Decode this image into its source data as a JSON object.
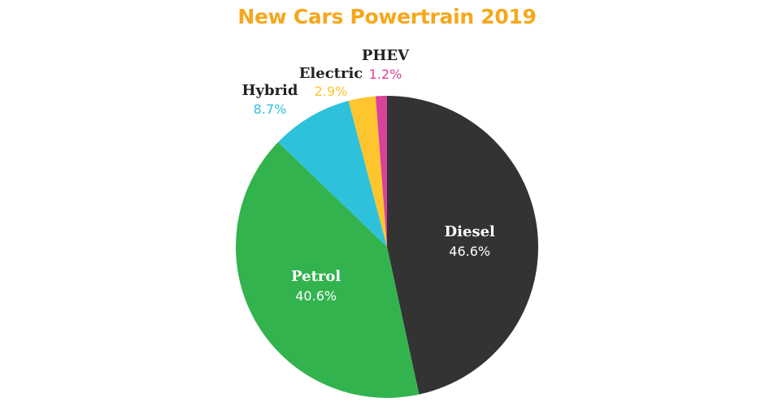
{
  "chart_data": {
    "type": "pie",
    "title": "New Cars Powertrain 2019",
    "title_color": "#f5a71c",
    "slices": [
      {
        "name": "Diesel",
        "value": 46.6,
        "label": "46.6%",
        "color": "#333333",
        "label_placement": "inside",
        "label_color": "#ffffff"
      },
      {
        "name": "Petrol",
        "value": 40.6,
        "label": "40.6%",
        "color": "#33b34e",
        "label_placement": "inside",
        "label_color": "#ffffff"
      },
      {
        "name": "Hybrid",
        "value": 8.7,
        "label": "8.7%",
        "color": "#2ec1dc",
        "label_placement": "outside",
        "label_color": "#2ec1dc"
      },
      {
        "name": "Electric",
        "value": 2.9,
        "label": "2.9%",
        "color": "#fec52e",
        "label_placement": "outside",
        "label_color": "#fec52e"
      },
      {
        "name": "PHEV",
        "value": 1.2,
        "label": "1.2%",
        "color": "#d8429b",
        "label_placement": "outside",
        "label_color": "#d8429b"
      }
    ],
    "outside_name_color": "#222222",
    "start": "12 o'clock",
    "direction": "clockwise",
    "legend": "none"
  }
}
